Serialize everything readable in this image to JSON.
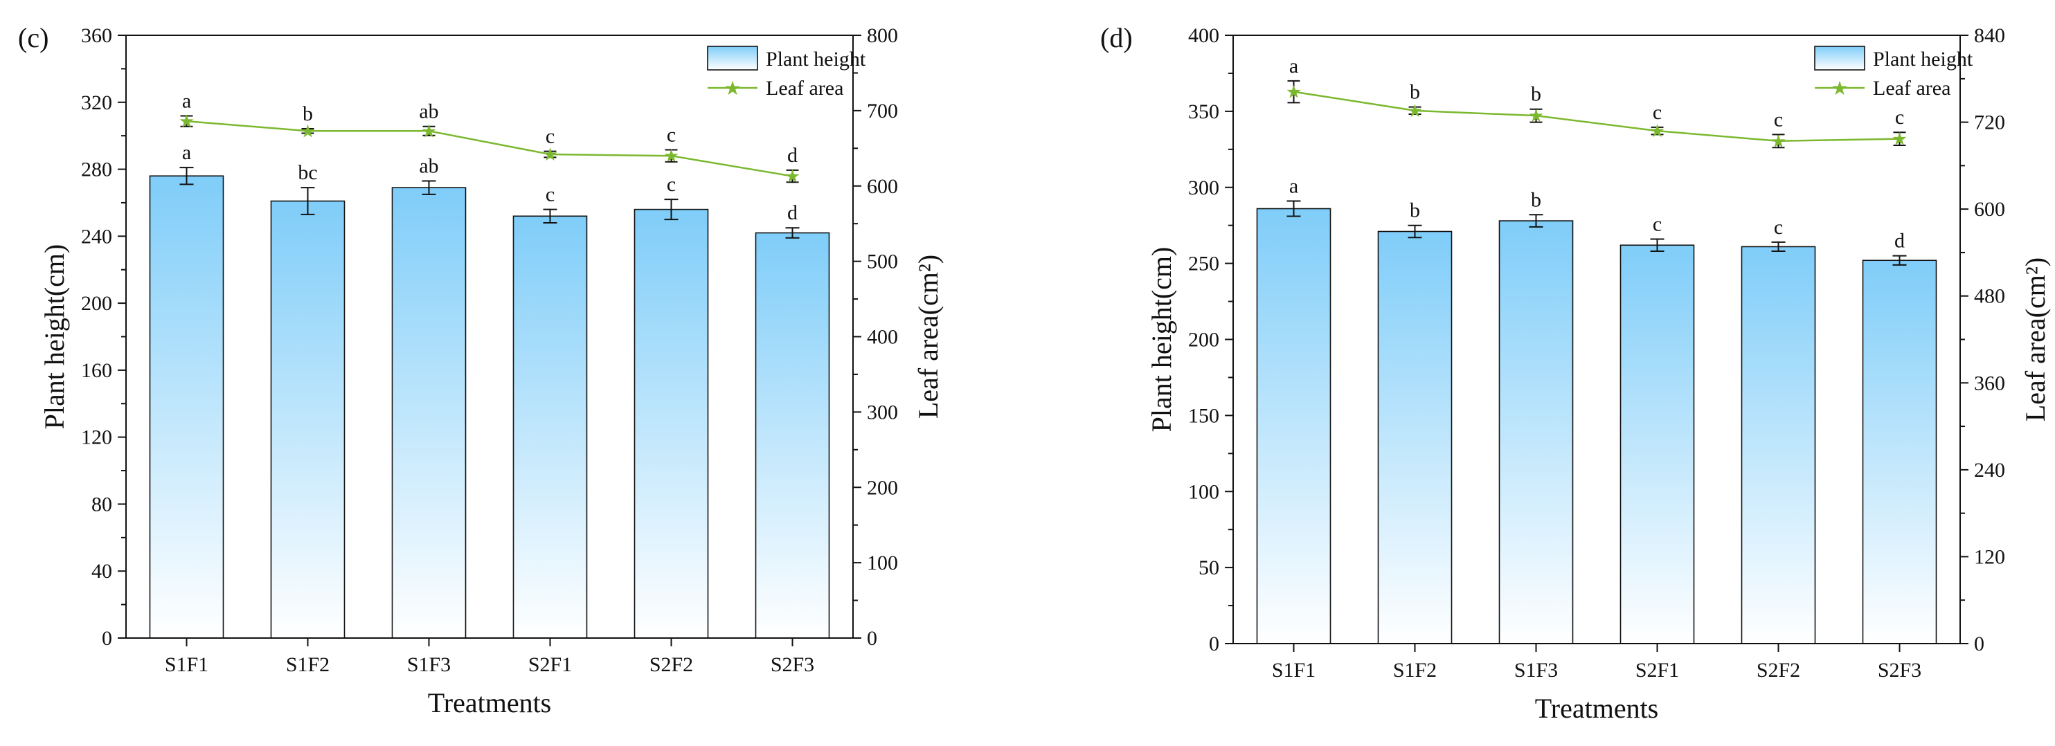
{
  "chart_data": [
    {
      "type": "bar",
      "panel_label": "(c)",
      "categories": [
        "S1F1",
        "S1F2",
        "S1F3",
        "S2F1",
        "S2F2",
        "S2F3"
      ],
      "xlabel": "Treatments",
      "ylabel": "Plant height(cm)",
      "y2label": "Leaf area(cm²)",
      "ylim": [
        0,
        360
      ],
      "y2lim": [
        0,
        800
      ],
      "yticks": [
        0,
        40,
        80,
        120,
        160,
        200,
        240,
        280,
        320,
        360
      ],
      "y2ticks": [
        0,
        100,
        200,
        300,
        400,
        500,
        600,
        700,
        800
      ],
      "series": [
        {
          "name": "Plant height",
          "type": "bar",
          "axis": "left",
          "values": [
            276,
            261,
            269,
            252,
            256,
            242
          ],
          "errors": [
            5,
            8,
            4,
            4,
            6,
            3
          ],
          "labels": [
            "a",
            "bc",
            "ab",
            "c",
            "c",
            "d"
          ]
        },
        {
          "name": "Leaf area",
          "type": "line",
          "axis": "right",
          "values": [
            686,
            673,
            673,
            642,
            640,
            613
          ],
          "errors": [
            7,
            3,
            6,
            4,
            8,
            8
          ],
          "labels": [
            "a",
            "b",
            "ab",
            "c",
            "c",
            "d"
          ]
        }
      ],
      "legend": [
        "Plant height",
        "Leaf area"
      ],
      "legend_position": "top-right"
    },
    {
      "type": "bar",
      "panel_label": "(d)",
      "categories": [
        "S1F1",
        "S1F2",
        "S1F3",
        "S2F1",
        "S2F2",
        "S2F3"
      ],
      "xlabel": "Treatments",
      "ylabel": "Plant height(cm)",
      "y2label": "Leaf area(cm²)",
      "ylim": [
        0,
        400
      ],
      "y2lim": [
        0,
        840
      ],
      "yticks": [
        0,
        50,
        100,
        150,
        200,
        250,
        300,
        350,
        400
      ],
      "y2ticks": [
        0,
        120,
        240,
        360,
        480,
        600,
        720,
        840
      ],
      "series": [
        {
          "name": "Plant height",
          "type": "bar",
          "axis": "left",
          "values": [
            286,
            271,
            278,
            262,
            261,
            252
          ],
          "errors": [
            5,
            4,
            4,
            4,
            3,
            3
          ],
          "labels": [
            "a",
            "b",
            "b",
            "c",
            "c",
            "d"
          ]
        },
        {
          "name": "Leaf area",
          "type": "line",
          "axis": "right",
          "values": [
            762,
            736,
            729,
            708,
            694,
            697
          ],
          "errors": [
            15,
            5,
            9,
            5,
            9,
            9
          ],
          "labels": [
            "a",
            "b",
            "b",
            "c",
            "c",
            "c"
          ]
        }
      ],
      "legend": [
        "Plant height",
        "Leaf area"
      ],
      "legend_position": "top-right"
    }
  ]
}
